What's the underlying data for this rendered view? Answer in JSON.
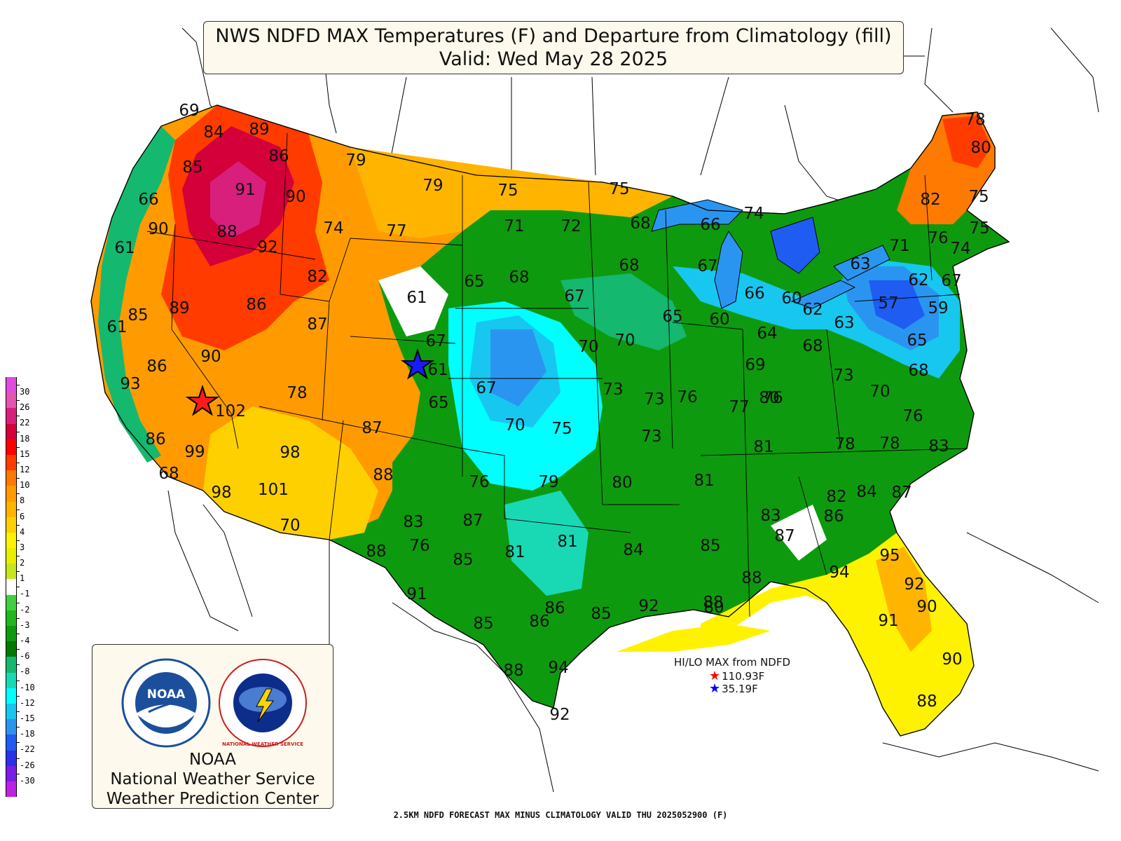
{
  "title": {
    "line1": "NWS NDFD MAX Temperatures (F) and Departure from Climatology (fill)",
    "line2": "Valid: Wed May 28 2025"
  },
  "legend": {
    "labels": [
      "30",
      "26",
      "22",
      "18",
      "15",
      "12",
      "10",
      "8",
      "6",
      "4",
      "3",
      "2",
      "1",
      "-1",
      "-2",
      "-3",
      "-4",
      "-6",
      "-8",
      "-10",
      "-12",
      "-15",
      "-18",
      "-22",
      "-26",
      "-30"
    ],
    "colors": [
      "#e14be0",
      "#e554b3",
      "#d81f7c",
      "#d30039",
      "#ff0000",
      "#ff3b00",
      "#ff7a00",
      "#ff9b00",
      "#ffb400",
      "#ffd000",
      "#fff200",
      "#e8f000",
      "#c7e61c",
      "#ffffff",
      "#3fd13f",
      "#1fb81f",
      "#0e9a0e",
      "#007a00",
      "#14b86e",
      "#19d9b5",
      "#00ffff",
      "#17c7f0",
      "#2a95f0",
      "#1e5cf2",
      "#2a32e8",
      "#7a1ee6",
      "#c020e6"
    ]
  },
  "logos": {
    "noaa_emblem_text": "NOAA",
    "nws_emblem_text": "NATIONAL WEATHER SERVICE",
    "agency_line1": "NOAA",
    "agency_line2": "National Weather Service",
    "agency_line3": "Weather Prediction Center"
  },
  "hilo": {
    "title": "HI/LO MAX from NDFD",
    "hi_value": "110.93F",
    "lo_value": "35.19F",
    "hi_color": "#ff0000",
    "lo_color": "#0000ff"
  },
  "footer": "2.5KM NDFD FORECAST MAX MINUS CLIMATOLOGY VALID THU 2025052900 (F)",
  "temperatures": [
    "69",
    "84",
    "89",
    "86",
    "79",
    "85",
    "91",
    "90",
    "66",
    "90",
    "88",
    "92",
    "61",
    "74",
    "77",
    "79",
    "75",
    "71",
    "72",
    "75",
    "68",
    "66",
    "74",
    "78",
    "80",
    "82",
    "75",
    "75",
    "76",
    "74",
    "71",
    "63",
    "62",
    "67",
    "57",
    "59",
    "65",
    "68",
    "63",
    "73",
    "70",
    "76",
    "83",
    "78",
    "78",
    "81",
    "73",
    "77",
    "76",
    "69",
    "68",
    "64",
    "66",
    "60",
    "62",
    "60",
    "65",
    "67",
    "68",
    "70",
    "70",
    "67",
    "68",
    "65",
    "61",
    "67",
    "61",
    "65",
    "67",
    "70",
    "75",
    "73",
    "73",
    "76",
    "80",
    "81",
    "80",
    "79",
    "76",
    "83",
    "87",
    "85",
    "81",
    "81",
    "84",
    "85",
    "88",
    "88",
    "87",
    "83",
    "82",
    "86",
    "84",
    "87",
    "95",
    "92",
    "94",
    "90",
    "91",
    "90",
    "88",
    "92",
    "88",
    "94",
    "91",
    "85",
    "86",
    "86",
    "85",
    "92",
    "80",
    "88",
    "87",
    "88",
    "76",
    "78",
    "98",
    "102",
    "101",
    "99",
    "98",
    "70",
    "68",
    "86",
    "93",
    "86",
    "85",
    "89",
    "61",
    "90",
    "86",
    "82",
    "87"
  ]
}
